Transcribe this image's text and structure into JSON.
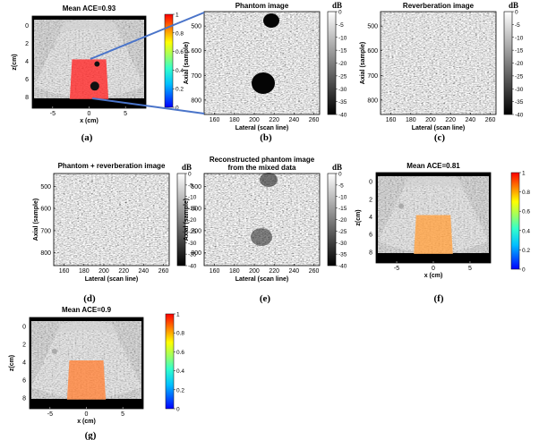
{
  "figure": {
    "panels": [
      {
        "id": "a",
        "kind": "ace",
        "caption": "(a)",
        "title": "Mean ACE=0.93",
        "xlabel": "x (cm)",
        "ylabel": "z(cm)",
        "xticks": [
          "-5",
          "0",
          "5"
        ],
        "yticks": [
          "0",
          "2",
          "4",
          "6",
          "8"
        ],
        "colorbar_ticks": [
          "1",
          "0.8",
          "0.6",
          "0.4",
          "0.2",
          "0"
        ],
        "mean_ace": 0.93,
        "roi_color": "#ff1a1a",
        "lesions": true
      },
      {
        "id": "b",
        "kind": "bmode",
        "caption": "(b)",
        "title": "Phantom image",
        "xlabel": "Lateral (scan line)",
        "ylabel": "Axial (sample)",
        "xticks": [
          "160",
          "180",
          "200",
          "220",
          "240",
          "260"
        ],
        "yticks": [
          "500",
          "600",
          "700",
          "800"
        ],
        "colorbar_unit": "dB",
        "colorbar_ticks": [
          "0",
          "-5",
          "-10",
          "-15",
          "-20",
          "-25",
          "-30",
          "-35",
          "-40"
        ],
        "lesions": "strong"
      },
      {
        "id": "c",
        "kind": "bmode",
        "caption": "(c)",
        "title": "Reverberation image",
        "xlabel": "Lateral (scan line)",
        "ylabel": "Axial (sample)",
        "xticks": [
          "160",
          "180",
          "200",
          "220",
          "240",
          "260"
        ],
        "yticks": [
          "500",
          "600",
          "700",
          "800"
        ],
        "colorbar_unit": "dB",
        "colorbar_ticks": [
          "0",
          "-5",
          "-10",
          "-15",
          "-20",
          "-25",
          "-30",
          "-35",
          "-40"
        ],
        "lesions": "none"
      },
      {
        "id": "d",
        "kind": "bmode",
        "caption": "(d)",
        "title": "Phantom + reverberation image",
        "xlabel": "Lateral (scan line)",
        "ylabel": "Axial (sample)",
        "xticks": [
          "160",
          "180",
          "200",
          "220",
          "240",
          "260"
        ],
        "yticks": [
          "500",
          "600",
          "700",
          "800"
        ],
        "colorbar_unit": "dB",
        "colorbar_ticks": [
          "0",
          "-5",
          "-10",
          "-15",
          "-20",
          "-25",
          "-30",
          "-35",
          "-40"
        ],
        "lesions": "none"
      },
      {
        "id": "e",
        "kind": "bmode",
        "caption": "(e)",
        "title_lines": [
          "Reconstructed phantom image",
          "from the mixed data"
        ],
        "xlabel": "Lateral (scan line)",
        "ylabel": "Axial (sample)",
        "xticks": [
          "160",
          "180",
          "200",
          "220",
          "240",
          "260"
        ],
        "yticks": [
          "500",
          "600",
          "700",
          "800"
        ],
        "colorbar_unit": "dB",
        "colorbar_ticks": [
          "0",
          "-5",
          "-10",
          "-15",
          "-20",
          "-25",
          "-30",
          "-35",
          "-40"
        ],
        "lesions": "faint"
      },
      {
        "id": "f",
        "kind": "ace",
        "caption": "(f)",
        "title": "Mean ACE=0.81",
        "xlabel": "x (cm)",
        "ylabel": "z(cm)",
        "xticks": [
          "-5",
          "0",
          "5"
        ],
        "yticks": [
          "0",
          "2",
          "4",
          "6",
          "8"
        ],
        "colorbar_ticks": [
          "1",
          "0.8",
          "0.6",
          "0.4",
          "0.2",
          "0"
        ],
        "mean_ace": 0.81,
        "roi_color": "#ff9a33",
        "lesions": false
      },
      {
        "id": "g",
        "kind": "ace",
        "caption": "(g)",
        "title": "Mean ACE=0.9",
        "xlabel": "x (cm)",
        "ylabel": "z(cm)",
        "xticks": [
          "-5",
          "0",
          "5"
        ],
        "yticks": [
          "0",
          "2",
          "4",
          "6",
          "8"
        ],
        "colorbar_ticks": [
          "1",
          "0.8",
          "0.6",
          "0.4",
          "0.2",
          "0"
        ],
        "mean_ace": 0.9,
        "roi_color": "#ff7a2a",
        "lesions": false
      }
    ]
  }
}
